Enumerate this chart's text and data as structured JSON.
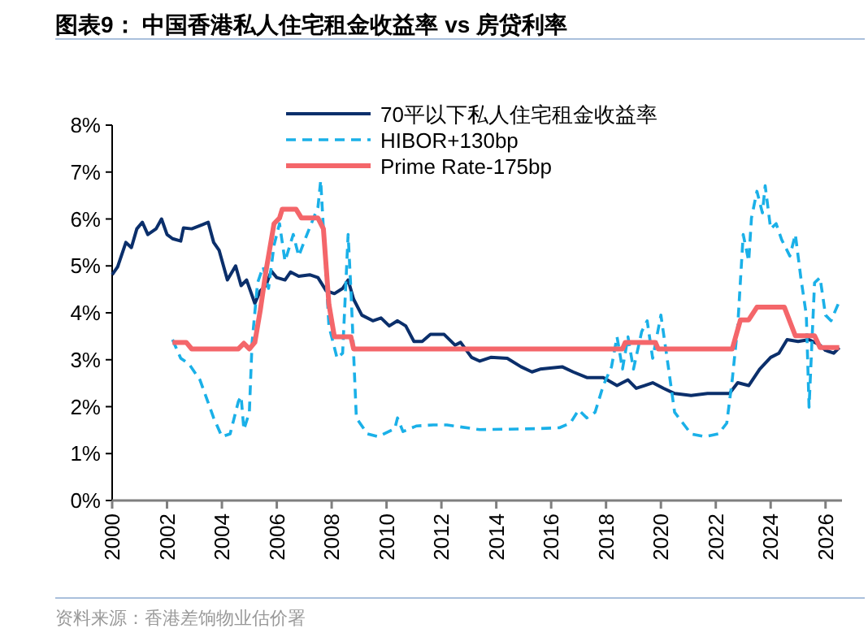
{
  "chart_data": {
    "type": "line",
    "title": "图表9：  中国香港私人住宅租金收益率 vs 房贷利率",
    "annotations": [
      "资料来源：香港差饷物业估价署"
    ],
    "xlim": [
      2000,
      2026.6
    ],
    "xticks": [
      2000,
      2002,
      2004,
      2006,
      2008,
      2010,
      2012,
      2014,
      2016,
      2018,
      2020,
      2022,
      2024,
      2026
    ],
    "ylim": [
      0,
      8
    ],
    "yticks": [
      {
        "value": 0,
        "label": "0%"
      },
      {
        "value": 1,
        "label": "1%"
      },
      {
        "value": 2,
        "label": "2%"
      },
      {
        "value": 3,
        "label": "3%"
      },
      {
        "value": 4,
        "label": "4%"
      },
      {
        "value": 5,
        "label": "5%"
      },
      {
        "value": 6,
        "label": "6%"
      },
      {
        "value": 7,
        "label": "7%"
      },
      {
        "value": 8,
        "label": "8%"
      }
    ],
    "grid": false,
    "legend": "top",
    "marker": "none",
    "series": [
      {
        "name": "70平以下私人住宅租金收益率",
        "color": "#0b2f6b",
        "line_style": "solid",
        "x": [
          2000,
          2000.2,
          2000.5,
          2000.7,
          2000.9,
          2001.1,
          2001.3,
          2001.6,
          2001.8,
          2002.0,
          2002.2,
          2002.5,
          2002.6,
          2002.9,
          2003.3,
          2003.5,
          2003.7,
          2003.9,
          2004.2,
          2004.5,
          2004.7,
          2004.9,
          2005.2,
          2005.4,
          2005.6,
          2005.8,
          2006.0,
          2006.3,
          2006.5,
          2006.8,
          2007.2,
          2007.5,
          2007.8,
          2008.1,
          2008.4,
          2008.6,
          2008.8,
          2009.1,
          2009.5,
          2009.8,
          2010.1,
          2010.4,
          2010.7,
          2011.0,
          2011.3,
          2011.6,
          2012.1,
          2012.5,
          2012.7,
          2013.1,
          2013.4,
          2013.8,
          2014.4,
          2014.9,
          2015.3,
          2015.6,
          2016.4,
          2016.8,
          2017.3,
          2017.9,
          2018.4,
          2018.8,
          2019.1,
          2019.4,
          2019.7,
          2020.1,
          2020.5,
          2021.1,
          2021.7,
          2022.5,
          2022.8,
          2023.2,
          2023.6,
          2024.0,
          2024.3,
          2024.6,
          2025.0,
          2025.4,
          2025.8,
          2026.0,
          2026.3,
          2026.5
        ],
        "values": [
          4.81,
          4.98,
          5.5,
          5.39,
          5.79,
          5.93,
          5.67,
          5.79,
          6.0,
          5.67,
          5.58,
          5.53,
          5.81,
          5.79,
          5.88,
          5.93,
          5.5,
          5.33,
          4.7,
          5.0,
          4.58,
          4.7,
          4.2,
          4.47,
          4.58,
          4.89,
          4.75,
          4.7,
          4.87,
          4.78,
          4.81,
          4.75,
          4.47,
          4.41,
          4.52,
          4.7,
          4.29,
          3.95,
          3.83,
          3.89,
          3.72,
          3.83,
          3.72,
          3.39,
          3.39,
          3.54,
          3.54,
          3.31,
          3.37,
          3.05,
          2.97,
          3.05,
          3.03,
          2.85,
          2.74,
          2.8,
          2.85,
          2.74,
          2.62,
          2.62,
          2.45,
          2.57,
          2.39,
          2.45,
          2.51,
          2.39,
          2.28,
          2.24,
          2.28,
          2.28,
          2.51,
          2.45,
          2.8,
          3.05,
          3.14,
          3.43,
          3.39,
          3.43,
          3.31,
          3.2,
          3.14,
          3.26
        ]
      },
      {
        "name": "HIBOR+130bp",
        "color": "#1ab0e8",
        "line_style": "dashed",
        "x": [
          2002.2,
          2002.5,
          2002.8,
          2003.2,
          2003.7,
          2004.0,
          2004.3,
          2004.6,
          2004.7,
          2004.8,
          2005.0,
          2005.1,
          2005.3,
          2005.5,
          2005.7,
          2005.9,
          2006.1,
          2006.3,
          2006.6,
          2006.8,
          2007.1,
          2007.5,
          2007.6,
          2007.7,
          2007.9,
          2008.2,
          2008.4,
          2008.6,
          2008.7,
          2008.9,
          2009.3,
          2009.7,
          2010.3,
          2010.4,
          2010.6,
          2011.1,
          2011.7,
          2012.2,
          2013.4,
          2015.4,
          2016.3,
          2016.7,
          2017.0,
          2017.3,
          2017.6,
          2017.9,
          2018.2,
          2018.4,
          2018.6,
          2018.8,
          2019.0,
          2019.3,
          2019.5,
          2019.7,
          2020.0,
          2020.2,
          2020.5,
          2020.8,
          2021.1,
          2021.6,
          2022.1,
          2022.4,
          2022.6,
          2022.8,
          2023.0,
          2023.2,
          2023.3,
          2023.5,
          2023.7,
          2023.8,
          2024.0,
          2024.2,
          2024.4,
          2024.7,
          2024.9,
          2025.1,
          2025.3,
          2025.4,
          2025.6,
          2025.8,
          2026.0,
          2026.2,
          2026.5
        ],
        "values": [
          3.43,
          3.03,
          2.91,
          2.57,
          1.76,
          1.36,
          1.42,
          2.11,
          2.22,
          1.51,
          1.88,
          3.37,
          4.64,
          4.98,
          4.52,
          5.44,
          5.9,
          5.1,
          5.67,
          5.21,
          5.67,
          6.25,
          6.82,
          5.79,
          3.72,
          3.03,
          3.14,
          5.67,
          4.52,
          1.76,
          1.42,
          1.36,
          1.53,
          1.76,
          1.47,
          1.59,
          1.61,
          1.61,
          1.51,
          1.53,
          1.55,
          1.65,
          1.93,
          1.76,
          1.88,
          2.45,
          2.85,
          3.49,
          2.8,
          3.49,
          2.8,
          3.6,
          3.83,
          3.03,
          3.95,
          3.14,
          1.88,
          1.65,
          1.42,
          1.36,
          1.42,
          1.65,
          2.57,
          3.72,
          5.67,
          5.1,
          6.02,
          6.59,
          6.13,
          6.71,
          5.79,
          5.9,
          5.56,
          5.21,
          5.67,
          4.75,
          3.95,
          1.99,
          4.64,
          4.75,
          3.95,
          3.83,
          4.24
        ]
      },
      {
        "name": "Prime Rate-175bp",
        "color": "#f4666a",
        "line_style": "solid",
        "x": [
          2002.2,
          2002.7,
          2002.9,
          2004.6,
          2004.8,
          2005.0,
          2005.2,
          2005.4,
          2005.6,
          2005.9,
          2006.1,
          2006.2,
          2006.7,
          2006.9,
          2007.5,
          2007.7,
          2007.9,
          2008.1,
          2008.7,
          2008.8,
          2018.6,
          2018.7,
          2019.8,
          2019.9,
          2022.6,
          2022.9,
          2023.2,
          2023.5,
          2024.5,
          2024.9,
          2025.6,
          2025.8,
          2026.5
        ],
        "values": [
          3.37,
          3.37,
          3.23,
          3.23,
          3.35,
          3.23,
          3.37,
          4.06,
          4.87,
          5.9,
          6.02,
          6.21,
          6.21,
          6.02,
          6.02,
          5.79,
          4.18,
          3.49,
          3.49,
          3.23,
          3.23,
          3.37,
          3.37,
          3.23,
          3.23,
          3.85,
          3.85,
          4.12,
          4.12,
          3.51,
          3.51,
          3.26,
          3.26
        ]
      }
    ]
  }
}
